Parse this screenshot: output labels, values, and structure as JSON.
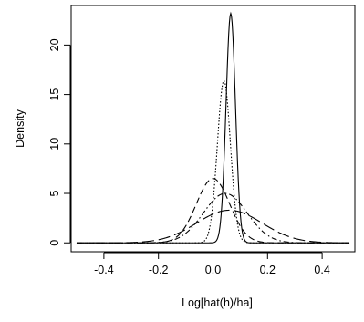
{
  "chart_data": {
    "type": "line",
    "title": "",
    "xlabel": "Log[hat(h)/ha]",
    "ylabel": "Density",
    "xlim": [
      -0.52,
      0.52
    ],
    "ylim": [
      -0.9,
      24.0
    ],
    "x_ticks": [
      -0.4,
      -0.2,
      0.0,
      0.2,
      0.4
    ],
    "x_tick_labels": [
      "-0.4",
      "-0.2",
      "0.0",
      "0.2",
      "0.4"
    ],
    "y_ticks": [
      0,
      5,
      10,
      15,
      20
    ],
    "y_tick_labels": [
      "0",
      "5",
      "10",
      "15",
      "20"
    ],
    "grid": false,
    "legend": "none",
    "x_range": [
      -0.5,
      0.5
    ],
    "series": [
      {
        "style": "solid",
        "peak_x": 0.065,
        "peak_y": 23.2,
        "sd": 0.0172
      },
      {
        "style": "dotted",
        "peak_x": 0.04,
        "peak_y": 16.4,
        "sd": 0.024
      },
      {
        "style": "dashed",
        "peak_x": 0.0,
        "peak_y": 6.5,
        "sd": 0.061
      },
      {
        "style": "dashdot",
        "peak_x": 0.045,
        "peak_y": 5.0,
        "sd": 0.08
      },
      {
        "style": "longdash",
        "peak_x": 0.06,
        "peak_y": 3.3,
        "sd": 0.12
      }
    ]
  }
}
